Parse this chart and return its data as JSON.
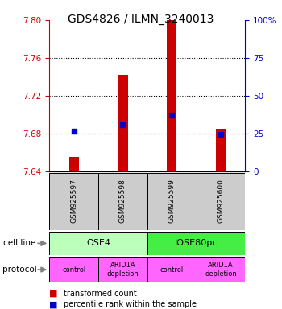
{
  "title": "GDS4826 / ILMN_3240013",
  "samples": [
    "GSM925597",
    "GSM925598",
    "GSM925599",
    "GSM925600"
  ],
  "bar_values": [
    7.655,
    7.742,
    7.8,
    7.685
  ],
  "bar_base": 7.64,
  "percentile_values": [
    7.683,
    7.689,
    7.7,
    7.679
  ],
  "ylim": [
    7.64,
    7.8
  ],
  "yticks_left": [
    7.64,
    7.68,
    7.72,
    7.76,
    7.8
  ],
  "yticks_right": [
    0,
    25,
    50,
    75,
    100
  ],
  "bar_color": "#cc0000",
  "percentile_color": "#0000cc",
  "cell_line_labels": [
    "OSE4",
    "IOSE80pc"
  ],
  "cell_line_spans": [
    [
      0,
      2
    ],
    [
      2,
      4
    ]
  ],
  "cell_line_colors": [
    "#bbffbb",
    "#44ee44"
  ],
  "protocol_labels": [
    "control",
    "ARID1A\ndepletion",
    "control",
    "ARID1A\ndepletion"
  ],
  "protocol_color": "#ff66ff",
  "sample_box_color": "#cccccc",
  "left_tick_color": "#cc0000",
  "right_tick_color": "#0000cc",
  "legend_red_label": "transformed count",
  "legend_blue_label": "percentile rank within the sample",
  "cell_line_row_label": "cell line",
  "protocol_row_label": "protocol",
  "gridline_levels": [
    7.68,
    7.72,
    7.76
  ]
}
